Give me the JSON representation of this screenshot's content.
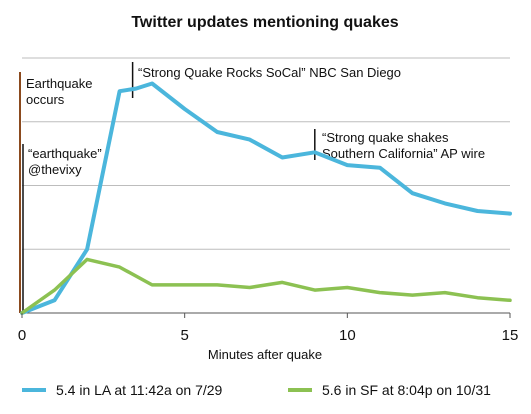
{
  "chart_data": {
    "type": "line",
    "title": "Twitter updates mentioning quakes",
    "xlabel": "Minutes after quake",
    "ylabel": "",
    "xlim": [
      0,
      15
    ],
    "ylim": [
      0,
      100
    ],
    "xticks": [
      0,
      5,
      10,
      15
    ],
    "grid": true,
    "legend_position": "bottom",
    "series": [
      {
        "name": "5.4 in LA at 11:42a on 7/29",
        "color": "#4bb6dc",
        "x": [
          0,
          1,
          2,
          3,
          3.5,
          4,
          5,
          6,
          7,
          8,
          9,
          10,
          11,
          12,
          13,
          14,
          15
        ],
        "y": [
          0,
          5,
          25,
          87,
          88,
          90,
          80,
          71,
          68,
          61,
          63,
          58,
          57,
          47,
          43,
          40,
          39
        ]
      },
      {
        "name": "5.6 in SF at 8:04p on 10/31",
        "color": "#8cc152",
        "x": [
          0,
          1,
          2,
          3,
          4,
          5,
          6,
          7,
          8,
          9,
          10,
          11,
          12,
          13,
          14,
          15
        ],
        "y": [
          0,
          9,
          21,
          18,
          11,
          11,
          11,
          10,
          12,
          9,
          10,
          8,
          7,
          8,
          6,
          5
        ]
      }
    ],
    "annotations": [
      {
        "id": "earthquake-occurs",
        "lines": [
          "Earthquake",
          "occurs"
        ],
        "x": 0,
        "color": "#8b4a1e"
      },
      {
        "id": "earthquake-thevixy",
        "lines": [
          "“earthquake”",
          "@thevixy"
        ],
        "x": 0,
        "color": "#111111"
      },
      {
        "id": "nbc",
        "lines": [
          "“Strong Quake Rocks SoCal” NBC San Diego"
        ],
        "x": 3.4,
        "color": "#111111"
      },
      {
        "id": "ap",
        "lines": [
          "“Strong quake shakes",
          "Southern California” AP wire"
        ],
        "x": 9,
        "color": "#111111"
      }
    ]
  }
}
